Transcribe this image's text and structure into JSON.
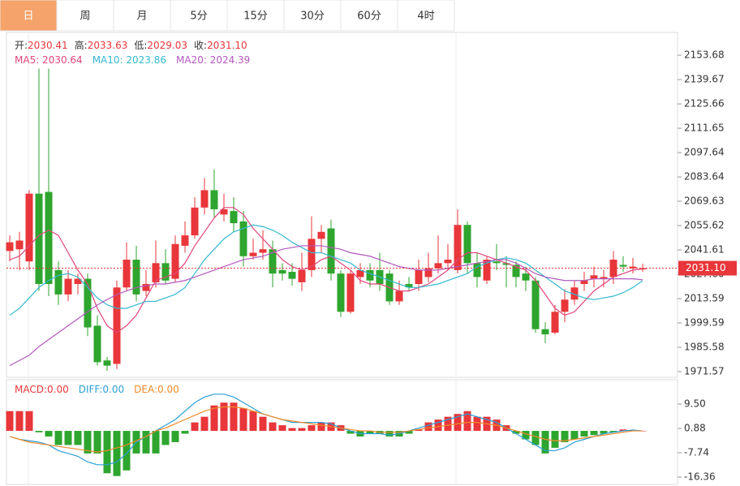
{
  "tabs": [
    "日",
    "周",
    "月",
    "5分",
    "15分",
    "30分",
    "60分",
    "4时"
  ],
  "active_tab": 0,
  "chart_data": [
    {
      "type": "candlestick",
      "header": [
        {
          "label": "开:",
          "value": "2030.41"
        },
        {
          "label": "高:",
          "value": "2033.63"
        },
        {
          "label": "低:",
          "value": "2029.03"
        },
        {
          "label": "收:",
          "value": "2031.10"
        }
      ],
      "up_color": "#e8363a",
      "down_color": "#2ea52e",
      "open": [
        2041,
        2042,
        2035,
        2074,
        2075,
        2030,
        2016,
        2022,
        2025,
        1998,
        1978,
        1976,
        2020,
        2036,
        2018,
        2023,
        2034,
        2025,
        2044,
        2050,
        2066,
        2076,
        2062,
        2064,
        2058,
        2038,
        2040,
        2042,
        2030,
        2029,
        2023,
        2030,
        2048,
        2054,
        2028,
        2006,
        2026,
        2030,
        2030,
        2028,
        2012,
        2022,
        2022,
        2026,
        2031,
        2034,
        2030,
        2056,
        2034,
        2024,
        2035,
        2034,
        2033,
        2028,
        2024,
        1996,
        1994,
        2006,
        2013,
        2022,
        2025,
        2025,
        2026,
        2033,
        2031,
        2030.41
      ],
      "high": [
        2050,
        2052,
        2076,
        2146,
        2146,
        2035,
        2030,
        2028,
        2028,
        2004,
        1980,
        2024,
        2046,
        2044,
        2030,
        2047,
        2042,
        2050,
        2058,
        2072,
        2083,
        2088,
        2074,
        2072,
        2064,
        2048,
        2053,
        2047,
        2034,
        2034,
        2040,
        2061,
        2056,
        2059,
        2030,
        2030,
        2034,
        2034,
        2040,
        2030,
        2024,
        2026,
        2036,
        2040,
        2050,
        2045,
        2065,
        2058,
        2040,
        2038,
        2045,
        2038,
        2035,
        2032,
        2026,
        2000,
        2010,
        2019,
        2024,
        2029,
        2032,
        2030,
        2041,
        2038,
        2037,
        2033.63
      ],
      "low": [
        2035,
        2030,
        2030,
        2018,
        2015,
        2010,
        2012,
        2016,
        1992,
        1975,
        1972,
        1973,
        2018,
        2012,
        2015,
        2020,
        2022,
        2023,
        2040,
        2048,
        2062,
        2060,
        2058,
        2052,
        2032,
        2036,
        2036,
        2020,
        2024,
        2021,
        2018,
        2026,
        2040,
        2024,
        2003,
        2005,
        2022,
        2020,
        2018,
        2010,
        2010,
        2018,
        2018,
        2023,
        2028,
        2030,
        2028,
        2028,
        2020,
        2022,
        2030,
        2020,
        2020,
        2018,
        1994,
        1988,
        1993,
        2000,
        2010,
        2018,
        2020,
        2020,
        2022,
        2029,
        2028,
        2029.03
      ],
      "close": [
        2046,
        2047,
        2074,
        2022,
        2022,
        2016,
        2025,
        2025,
        1997,
        1977,
        1975,
        2020,
        2036,
        2016,
        2022,
        2034,
        2024,
        2045,
        2050,
        2066,
        2076,
        2065,
        2065,
        2057,
        2038,
        2040,
        2042,
        2028,
        2028,
        2025,
        2030,
        2048,
        2052,
        2028,
        2006,
        2028,
        2030,
        2024,
        2022,
        2012,
        2018,
        2020,
        2030,
        2031,
        2034,
        2036,
        2056,
        2034,
        2026,
        2036,
        2034,
        2033,
        2026,
        2024,
        1996,
        1993,
        2006,
        2013,
        2020,
        2024,
        2027,
        2026,
        2036,
        2032,
        2032,
        2031.1
      ],
      "series": [
        {
          "name": "MA5: 2030.64",
          "color": "#e2457c",
          "values": [
            2036,
            2038,
            2044,
            2050,
            2053,
            2050,
            2040,
            2030,
            2022,
            2008,
            1998,
            1994,
            1998,
            2004,
            2014,
            2024,
            2026,
            2028,
            2034,
            2044,
            2052,
            2060,
            2066,
            2066,
            2062,
            2054,
            2048,
            2042,
            2036,
            2032,
            2030,
            2032,
            2036,
            2038,
            2034,
            2030,
            2024,
            2022,
            2022,
            2020,
            2018,
            2018,
            2020,
            2022,
            2026,
            2030,
            2036,
            2040,
            2040,
            2038,
            2036,
            2034,
            2032,
            2030,
            2024,
            2016,
            2008,
            2004,
            2006,
            2012,
            2018,
            2022,
            2026,
            2028,
            2030,
            2030.64
          ]
        },
        {
          "name": "MA10: 2023.86",
          "color": "#34b8d0",
          "values": [
            2004,
            2008,
            2014,
            2020,
            2024,
            2027,
            2028,
            2026,
            2020,
            2014,
            2010,
            2008,
            2008,
            2010,
            2012,
            2012,
            2014,
            2016,
            2020,
            2028,
            2036,
            2042,
            2048,
            2052,
            2054,
            2056,
            2055,
            2053,
            2050,
            2046,
            2043,
            2040,
            2040,
            2038,
            2036,
            2034,
            2030,
            2028,
            2026,
            2024,
            2022,
            2020,
            2020,
            2021,
            2022,
            2024,
            2026,
            2028,
            2032,
            2034,
            2036,
            2037,
            2036,
            2034,
            2030,
            2026,
            2022,
            2018,
            2016,
            2014,
            2013,
            2014,
            2015,
            2017,
            2020,
            2023.86
          ]
        },
        {
          "name": "MA20: 2024.39",
          "color": "#b359be",
          "values": [
            1975,
            1978,
            1981,
            1986,
            1990,
            1994,
            1998,
            2002,
            2006,
            2010,
            2013,
            2016,
            2018,
            2020,
            2021,
            2022,
            2022,
            2023,
            2024,
            2026,
            2028,
            2030,
            2032,
            2034,
            2036,
            2037,
            2038,
            2040,
            2042,
            2043,
            2044,
            2044,
            2044,
            2043,
            2042,
            2040,
            2039,
            2038,
            2036,
            2034,
            2032,
            2031,
            2030,
            2030,
            2030,
            2031,
            2032,
            2033,
            2034,
            2035,
            2036,
            2036,
            2034,
            2031,
            2028,
            2026,
            2025,
            2024,
            2024,
            2024,
            2025,
            2025,
            2025,
            2025,
            2025,
            2024.39
          ]
        }
      ],
      "ylim": [
        1968.3,
        2166.8
      ],
      "yticks": [
        2153.68,
        2139.67,
        2125.66,
        2111.65,
        2097.64,
        2083.64,
        2069.63,
        2055.62,
        2041.61,
        {
          "value": 2027.6,
          "label": "2027.60"
        },
        2013.59,
        1999.59,
        1985.58,
        1971.57
      ],
      "last_price": {
        "value": 2031.1,
        "label": "2031.10"
      },
      "last_price_color": "#e8363a"
    },
    {
      "type": "macd",
      "bar_name": "MACD:0.00",
      "bar_name_color": "#e8363a",
      "up_color": "#e8363a",
      "down_color": "#2ea52e",
      "values": [
        7,
        7,
        7,
        -0.5,
        -2,
        -5,
        -5,
        -5,
        -8,
        -8,
        -15,
        -16,
        -14,
        -8,
        -8,
        -8,
        -5,
        -4,
        -1,
        3,
        5,
        9,
        10,
        10,
        8,
        7,
        5,
        3,
        2,
        1,
        1,
        2,
        3,
        3,
        2,
        -1,
        -2,
        -1,
        -1,
        -2,
        -2,
        -1,
        0.5,
        3,
        4,
        5,
        6,
        7,
        5,
        5,
        4,
        2,
        -1,
        -3,
        -5,
        -8,
        -6,
        -4,
        -3,
        -2,
        -1.5,
        -1,
        -0.5,
        0.5,
        0.3,
        0
      ],
      "series": [
        {
          "name": "DIFF:0.00",
          "color": "#2a9fd6",
          "values": [
            -2,
            -3,
            -3.5,
            -4,
            -5,
            -7,
            -8,
            -9,
            -11,
            -12,
            -12,
            -11,
            -8,
            -4,
            -2,
            0,
            2,
            4,
            7,
            10,
            12,
            13,
            13,
            12,
            10,
            8,
            6,
            5,
            4,
            3,
            3,
            3,
            3,
            2.5,
            1,
            0,
            -1,
            -1,
            -1,
            -1.5,
            -1,
            0,
            1,
            2,
            3,
            4,
            5,
            6,
            5,
            4,
            3,
            1,
            -1,
            -3,
            -5,
            -7,
            -7,
            -6,
            -4,
            -3,
            -2,
            -1,
            -0.5,
            0,
            0.3,
            0
          ]
        },
        {
          "name": "DEA:0.00",
          "color": "#f08a2a",
          "values": [
            -2,
            -3,
            -4,
            -4.5,
            -5,
            -5.5,
            -6,
            -6.5,
            -7,
            -7.5,
            -7,
            -6,
            -5,
            -3.5,
            -2,
            0,
            1,
            2.5,
            4,
            5.5,
            7,
            8,
            8.5,
            8.5,
            8,
            7,
            6,
            5,
            4,
            3.5,
            3,
            2.5,
            2,
            1.5,
            1,
            0.5,
            0,
            0,
            -0.5,
            -0.5,
            -0.5,
            0,
            0.5,
            1,
            1.5,
            2,
            2.5,
            3,
            3,
            2.5,
            2,
            1,
            0,
            -1,
            -2,
            -3,
            -3.5,
            -3.5,
            -3,
            -2.5,
            -2,
            -1.5,
            -1,
            -0.5,
            0,
            0
          ]
        }
      ],
      "ylim": [
        -18.95,
        18.12
      ],
      "yticks": [
        {
          "value": 9.5,
          "label": "9.50"
        },
        0.88,
        -7.74,
        -16.36
      ]
    }
  ]
}
